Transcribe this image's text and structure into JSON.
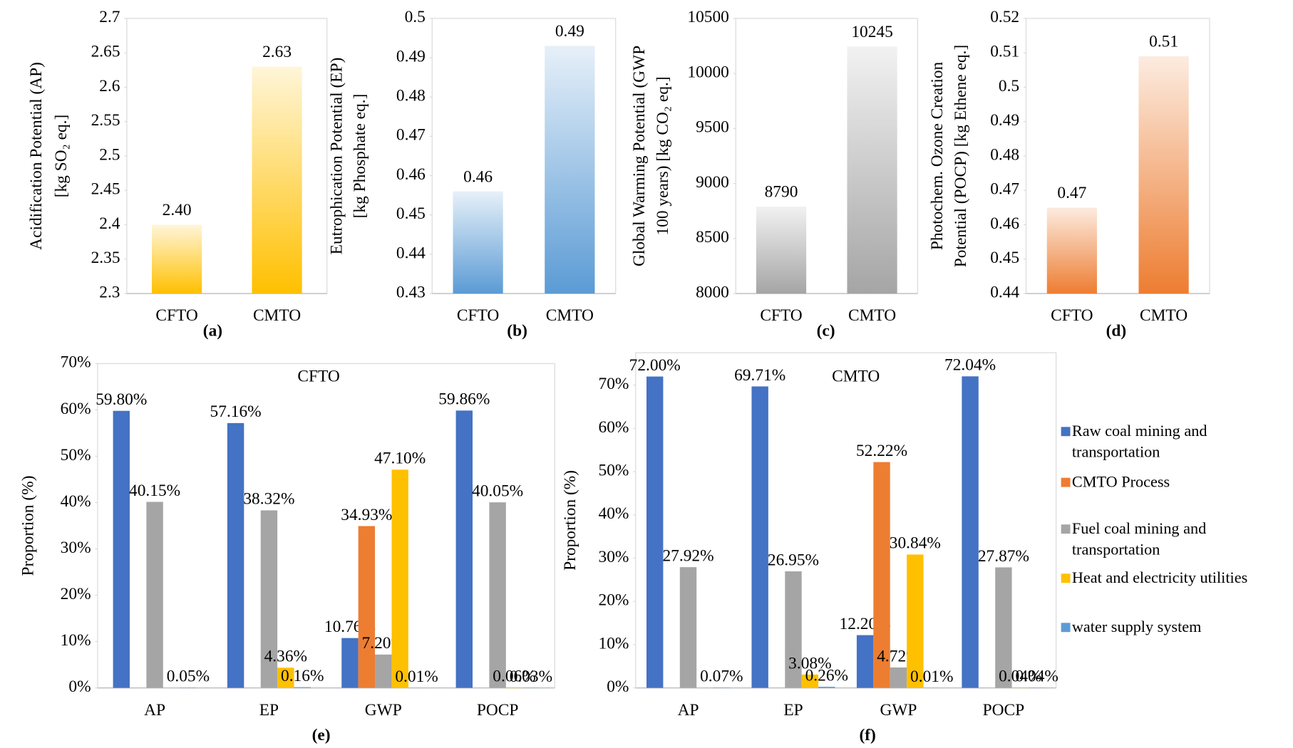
{
  "chart_data": [
    {
      "type": "bar",
      "categories": [
        "CFTO",
        "CMTO"
      ],
      "values": [
        2.4,
        2.63
      ],
      "value_labels": [
        "2.40",
        "2.63"
      ],
      "color": "#ffc000",
      "ylabel": [
        "Acidification Potential (AP)",
        "[kg SO₂ eq.]"
      ],
      "ylim": [
        2.3,
        2.7
      ],
      "yticks": [
        2.3,
        2.35,
        2.4,
        2.45,
        2.5,
        2.55,
        2.6,
        2.65,
        2.7
      ],
      "caption": "(a)"
    },
    {
      "type": "bar",
      "categories": [
        "CFTO",
        "CMTO"
      ],
      "values": [
        0.456,
        0.493
      ],
      "value_labels": [
        "0.46",
        "0.49"
      ],
      "color": "#5b9bd5",
      "ylabel": [
        "Eutrophication Potential (EP)",
        "[kg Phosphate eq.]"
      ],
      "ylim": [
        0.43,
        0.5
      ],
      "yticks": [
        0.43,
        0.44,
        0.45,
        0.46,
        0.47,
        0.48,
        0.49,
        0.5
      ],
      "caption": "(b)"
    },
    {
      "type": "bar",
      "categories": [
        "CFTO",
        "CMTO"
      ],
      "values": [
        8790,
        10245
      ],
      "color": "#a5a5a5",
      "ylabel": [
        "Global Warming Potential (GWP",
        "100 years) [kg CO₂ eq.]"
      ],
      "ylim": [
        8000,
        10500
      ],
      "yticks": [
        8000,
        8500,
        9000,
        9500,
        10000,
        10500
      ],
      "caption": "(c)"
    },
    {
      "type": "bar",
      "categories": [
        "CFTO",
        "CMTO"
      ],
      "values": [
        0.465,
        0.509
      ],
      "value_labels": [
        "0.47",
        "0.51"
      ],
      "color": "#ed7d31",
      "ylabel": [
        "Photochem. Ozone Creation",
        "Potential (POCP) [kg Ethene eq.]"
      ],
      "ylim": [
        0.44,
        0.52
      ],
      "yticks": [
        0.44,
        0.45,
        0.46,
        0.47,
        0.48,
        0.49,
        0.5,
        0.51,
        0.52
      ],
      "caption": "(d)"
    },
    {
      "type": "grouped_bar",
      "title": "CFTO",
      "categories": [
        "AP",
        "EP",
        "GWP",
        "POCP"
      ],
      "ylabel": [
        "Proportion (%)"
      ],
      "caption": "(e)",
      "legend": false,
      "ylim": [
        0,
        70
      ],
      "yticks": [
        {
          "value": 0,
          "label": "0%"
        },
        {
          "value": 10,
          "label": "10%"
        },
        {
          "value": 20,
          "label": "20%"
        },
        {
          "value": 30,
          "label": "30%"
        },
        {
          "value": 40,
          "label": "40%"
        },
        {
          "value": 50,
          "label": "50%"
        },
        {
          "value": 60,
          "label": "60%"
        },
        {
          "value": 70,
          "label": "70%"
        }
      ],
      "series": [
        {
          "color": "#4472c4",
          "values": [
            59.8,
            57.16,
            10.76,
            59.86
          ],
          "value_labels": [
            "59.80%",
            "57.16%",
            "10.76%",
            "59.86%"
          ]
        },
        {
          "color": "#ed7d31",
          "values": [
            null,
            null,
            34.93,
            null
          ],
          "value_labels": [
            null,
            null,
            "34.93%",
            null
          ]
        },
        {
          "color": "#a5a5a5",
          "values": [
            40.15,
            38.32,
            7.2,
            40.05
          ],
          "value_labels": [
            "40.15%",
            "38.32%",
            "7.20%",
            "40.05%"
          ]
        },
        {
          "color": "#ffc000",
          "values": [
            null,
            4.36,
            47.1,
            0.06
          ],
          "value_labels": [
            null,
            "4.36%",
            "47.10%",
            "0.06%"
          ]
        },
        {
          "color": "#5b9bd5",
          "values": [
            0.05,
            0.16,
            0.01,
            0.03
          ],
          "value_labels": [
            "0.05%",
            "0.16%",
            "0.01%",
            "0.03%"
          ]
        }
      ]
    },
    {
      "type": "grouped_bar",
      "title": "CMTO",
      "categories": [
        "AP",
        "EP",
        "GWP",
        "POCP"
      ],
      "ylabel": [
        "Proportion (%)"
      ],
      "caption": "(f)",
      "legend": "right",
      "ylim": [
        0,
        77.5
      ],
      "yticks": [
        {
          "value": 0,
          "label": "0%"
        },
        {
          "value": 10,
          "label": "10%"
        },
        {
          "value": 20,
          "label": "20%"
        },
        {
          "value": 30,
          "label": "30%"
        },
        {
          "value": 40,
          "label": "40%"
        },
        {
          "value": 50,
          "label": "50%"
        },
        {
          "value": 60,
          "label": "60%"
        },
        {
          "value": 70,
          "label": "70%"
        }
      ],
      "series": [
        {
          "name": "Raw coal mining and transportation",
          "color": "#4472c4",
          "values": [
            72.0,
            69.71,
            12.2,
            72.04
          ],
          "value_labels": [
            "72.00%",
            "69.71%",
            "12.20%",
            "72.04%"
          ]
        },
        {
          "name": "CMTO Process",
          "color": "#ed7d31",
          "values": [
            null,
            null,
            52.22,
            null
          ],
          "value_labels": [
            null,
            null,
            "52.22%",
            null
          ]
        },
        {
          "name": "Fuel coal mining and transportation",
          "color": "#a5a5a5",
          "values": [
            27.92,
            26.95,
            4.72,
            27.87
          ],
          "value_labels": [
            "27.92%",
            "26.95%",
            "4.72%",
            "27.87%"
          ]
        },
        {
          "name": "Heat and electricity utilities",
          "color": "#ffc000",
          "values": [
            null,
            3.08,
            30.84,
            0.04
          ],
          "value_labels": [
            null,
            "3.08%",
            "30.84%",
            "0.04%"
          ]
        },
        {
          "name": "water supply system",
          "color": "#5b9bd5",
          "values": [
            0.07,
            0.26,
            0.01,
            0.04
          ],
          "value_labels": [
            "0.07%",
            "0.26%",
            "0.01%",
            "0.04%"
          ]
        }
      ]
    }
  ]
}
